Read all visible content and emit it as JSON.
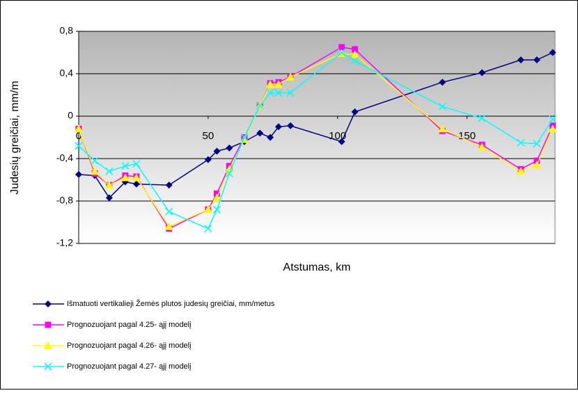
{
  "chart_data": {
    "type": "line",
    "xlabel": "Atstumas, km",
    "ylabel": "Judesių greičiai, mm/m",
    "x": [
      0,
      6.2,
      11.8,
      18,
      22.3,
      34.9,
      50,
      53.4,
      58.2,
      64,
      70,
      74,
      77.2,
      81.8,
      101.6,
      106.7,
      140.5,
      155.8,
      170.8,
      177,
      183.1
    ],
    "series": [
      {
        "name": "Išmatuoti vertikalieji Žemės plutos judesių greičiai, mm/metus",
        "color": "#000080",
        "marker": "diamond",
        "values": [
          -0.55,
          -0.56,
          -0.77,
          -0.62,
          -0.64,
          -0.65,
          -0.41,
          -0.33,
          -0.3,
          -0.24,
          -0.16,
          -0.2,
          -0.1,
          -0.09,
          -0.24,
          0.04,
          0.32,
          0.41,
          0.53,
          0.53,
          0.6
        ]
      },
      {
        "name": "Prognozuojant pagal 4.25- ąjį modelį",
        "color": "#ff00ff",
        "marker": "square",
        "values": [
          -0.12,
          -0.54,
          -0.65,
          -0.56,
          -0.57,
          -1.06,
          -0.88,
          -0.73,
          -0.47,
          -0.2,
          0.1,
          0.31,
          0.32,
          0.37,
          0.65,
          0.63,
          -0.14,
          -0.27,
          -0.5,
          -0.42,
          -0.09
        ]
      },
      {
        "name": "Prognozuojant pagal 4.26- ąjį modelį",
        "color": "#ffff00",
        "marker": "triangle",
        "values": [
          -0.12,
          -0.52,
          -0.65,
          -0.58,
          -0.58,
          -1.04,
          -0.88,
          -0.77,
          -0.5,
          -0.22,
          0.1,
          0.3,
          0.3,
          0.37,
          0.59,
          0.58,
          -0.12,
          -0.29,
          -0.52,
          -0.46,
          -0.12
        ]
      },
      {
        "name": "Prognozuojant pagal 4.27- ąjį modelį",
        "color": "#00ffff",
        "marker": "x",
        "values": [
          -0.28,
          -0.42,
          -0.52,
          -0.47,
          -0.45,
          -0.9,
          -1.06,
          -0.88,
          -0.54,
          -0.2,
          0.1,
          0.22,
          0.22,
          0.22,
          0.6,
          0.52,
          0.09,
          -0.02,
          -0.25,
          -0.26,
          -0.03
        ]
      }
    ],
    "xlim": [
      0,
      184
    ],
    "ylim": [
      -1.2,
      0.8
    ],
    "xticks": [
      0,
      50,
      100,
      150
    ],
    "yticks": [
      {
        "value": -1.2,
        "label": "-1,2"
      },
      {
        "value": -0.8,
        "label": "-0,8"
      },
      {
        "value": -0.4,
        "label": "-0,4"
      },
      0,
      {
        "value": 0.4,
        "label": "0,4"
      },
      {
        "value": 0.8,
        "label": "0,8"
      }
    ],
    "grid": true
  }
}
